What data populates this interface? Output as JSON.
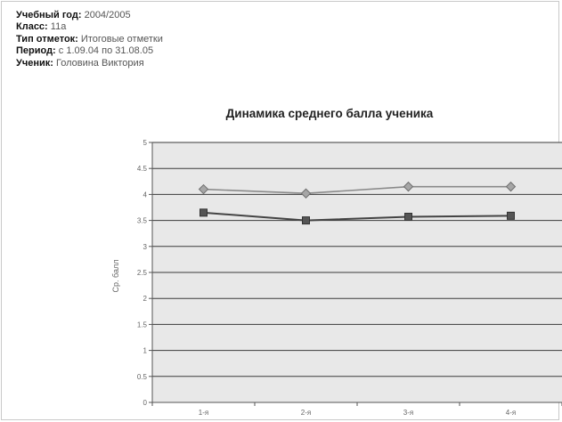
{
  "info": {
    "year_label": "Учебный год:",
    "year_value": "2004/2005",
    "class_label": "Класс:",
    "class_value": "11а",
    "marks_type_label": "Тип отметок:",
    "marks_type_value": "Итоговые отметки",
    "period_label": "Период:",
    "period_value": "с 1.09.04 по 31.08.05",
    "student_label": "Ученик:",
    "student_value": "Головина Виктория"
  },
  "chart_data": {
    "type": "line",
    "title": "Динамика среднего балла ученика",
    "xlabel": "",
    "ylabel": "Ср. балл",
    "categories": [
      "1-я",
      "2-я",
      "3-я",
      "4-я"
    ],
    "ylim": [
      0,
      5
    ],
    "yticks": [
      "0",
      "0.5",
      "1",
      "1.5",
      "2",
      "2.5",
      "3",
      "3.5",
      "4",
      "4.5",
      "5"
    ],
    "grid": true,
    "legend": "none",
    "series": [
      {
        "values": [
          4.1,
          4.02,
          4.15,
          4.15
        ],
        "marker": "diamond",
        "color": "#8a8a8a"
      },
      {
        "values": [
          3.65,
          3.5,
          3.57,
          3.59
        ],
        "marker": "square",
        "color": "#444444"
      }
    ],
    "colors": {
      "plot_bg": "#e8e8e8",
      "gridline": "#3a3a3a",
      "axis": "#555555"
    }
  }
}
